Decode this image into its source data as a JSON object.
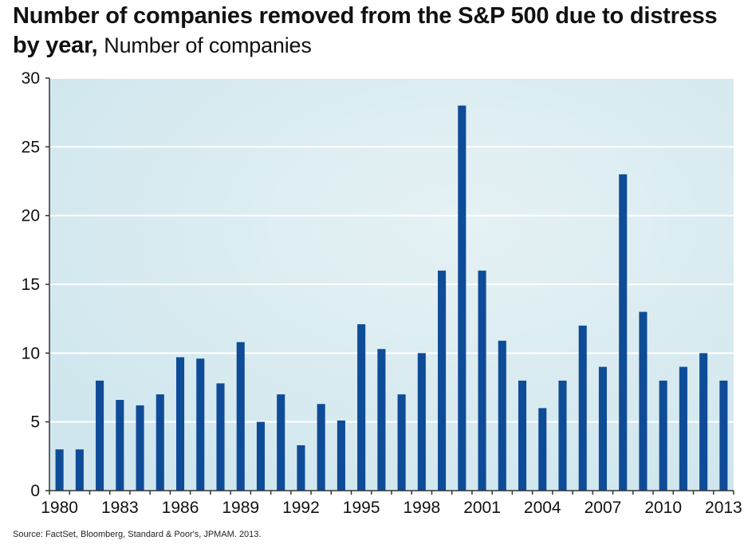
{
  "chart_data": {
    "type": "bar",
    "title": "Number of companies removed from the S&P 500 due to distress by year,",
    "subtitle": "Number of companies",
    "xlabel": "",
    "ylabel": "",
    "ylim": [
      0,
      30
    ],
    "yticks": [
      "0",
      "5",
      "10",
      "15",
      "20",
      "25",
      "30"
    ],
    "categories": [
      "1980",
      "1981",
      "1982",
      "1983",
      "1984",
      "1985",
      "1986",
      "1987",
      "1988",
      "1989",
      "1990",
      "1991",
      "1992",
      "1993",
      "1994",
      "1995",
      "1996",
      "1997",
      "1998",
      "1999",
      "2000",
      "2001",
      "2002",
      "2003",
      "2004",
      "2005",
      "2006",
      "2007",
      "2008",
      "2009",
      "2010",
      "2011",
      "2012",
      "2013"
    ],
    "xtick_labels": [
      "1980",
      "",
      "",
      "1983",
      "",
      "",
      "1986",
      "",
      "",
      "1989",
      "",
      "",
      "1992",
      "",
      "",
      "1995",
      "",
      "",
      "1998",
      "",
      "",
      "2001",
      "",
      "",
      "2004",
      "",
      "",
      "2007",
      "",
      "",
      "2010",
      "",
      "",
      "2013"
    ],
    "values": [
      3,
      3,
      8,
      6.6,
      6.2,
      7,
      9.7,
      9.6,
      7.8,
      10.8,
      5,
      7,
      3.3,
      6.3,
      5.1,
      12.1,
      10.3,
      7,
      10,
      16,
      28,
      16,
      10.9,
      8,
      6,
      8,
      12,
      9,
      23,
      13,
      8,
      9,
      10,
      8
    ],
    "grid": true,
    "legend": "none",
    "colors": {
      "bar": "#0f4c98",
      "plot_background": "#d4e9f0",
      "gridline": "#ffffff",
      "axis": "#333333"
    }
  },
  "source": "Source: FactSet, Bloomberg, Standard & Poor's, JPMAM. 2013."
}
